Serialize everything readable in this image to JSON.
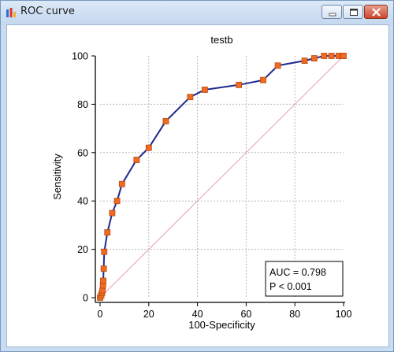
{
  "window": {
    "title": "ROC curve",
    "controls": {
      "minimize": "minimize",
      "maximize": "maximize",
      "close": "close"
    }
  },
  "colors": {
    "curve": "#1f2a8f",
    "marker_fill": "#f06a22",
    "marker_stroke": "#b84a10",
    "diagonal": "#e8a0a8",
    "grid": "#b8b8b8"
  },
  "chart_data": {
    "type": "line",
    "title": "testb",
    "xlabel": "100-Specificity",
    "ylabel": "Sensitivity",
    "xlim": [
      0,
      100
    ],
    "ylim": [
      0,
      100
    ],
    "xticks": [
      "0",
      "20",
      "40",
      "60",
      "80",
      "100"
    ],
    "yticks": [
      "0",
      "20",
      "40",
      "60",
      "80",
      "100"
    ],
    "grid": true,
    "series": [
      {
        "points": [
          [
            0,
            0
          ],
          [
            0.5,
            1
          ],
          [
            0.8,
            2
          ],
          [
            1,
            3
          ],
          [
            1.2,
            5
          ],
          [
            1.3,
            7
          ],
          [
            1.5,
            12
          ],
          [
            1.7,
            19
          ],
          [
            3,
            27
          ],
          [
            5,
            35
          ],
          [
            7,
            40
          ],
          [
            9,
            47
          ],
          [
            15,
            57
          ],
          [
            20,
            62
          ],
          [
            27,
            73
          ],
          [
            37,
            83
          ],
          [
            43,
            86
          ],
          [
            57,
            88
          ],
          [
            67,
            90
          ],
          [
            73,
            96
          ],
          [
            84,
            98
          ],
          [
            88,
            99
          ],
          [
            92,
            100
          ],
          [
            95,
            100
          ],
          [
            98,
            100
          ],
          [
            99.5,
            100
          ],
          [
            100,
            100
          ]
        ]
      }
    ],
    "reference_line": [
      [
        0,
        0
      ],
      [
        100,
        100
      ]
    ],
    "annotation": {
      "auc": "AUC = 0.798",
      "p": "P < 0.001"
    }
  }
}
